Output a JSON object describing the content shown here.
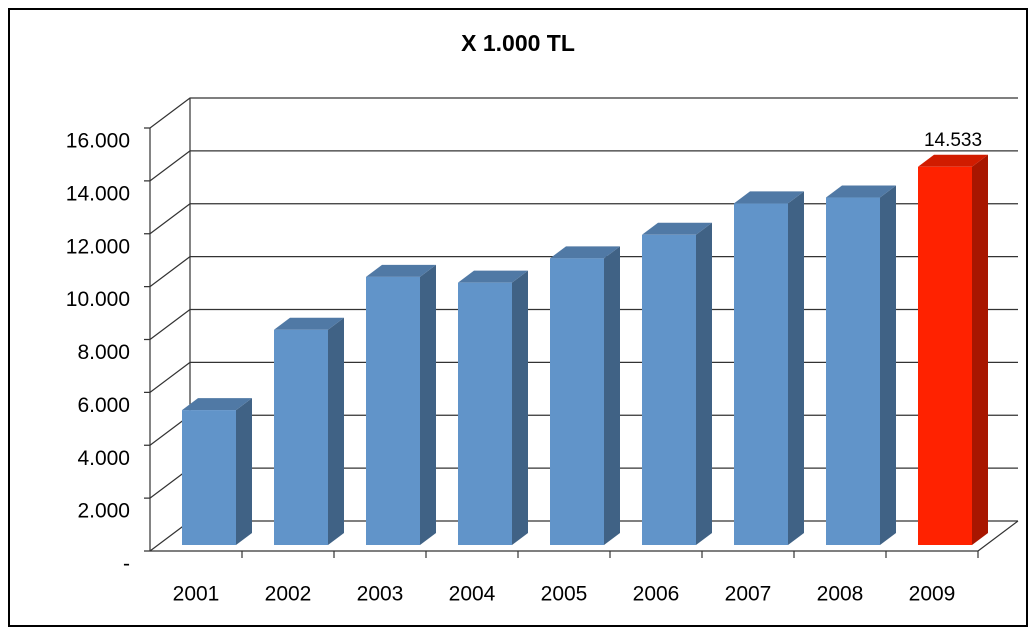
{
  "chart_data": {
    "type": "bar3d",
    "title": "X 1.000 TL",
    "categories": [
      "2001",
      "2002",
      "2003",
      "2004",
      "2005",
      "2006",
      "2007",
      "2008",
      "2009"
    ],
    "values": [
      5330,
      8370,
      10370,
      10150,
      11070,
      11960,
      13150,
      13370,
      14533
    ],
    "value_labels": [
      null,
      null,
      null,
      null,
      null,
      null,
      null,
      null,
      "14.533"
    ],
    "colors": [
      "#6194c9",
      "#6194c9",
      "#6194c9",
      "#6194c9",
      "#6194c9",
      "#6194c9",
      "#6194c9",
      "#6194c9",
      "#ff2200"
    ],
    "ylim": [
      0,
      16000
    ],
    "yticks": [
      {
        "value": 0,
        "label": "-"
      },
      {
        "value": 2000,
        "label": "2.000"
      },
      {
        "value": 4000,
        "label": "4.000"
      },
      {
        "value": 6000,
        "label": "6.000"
      },
      {
        "value": 8000,
        "label": "8.000"
      },
      {
        "value": 10000,
        "label": "10.000"
      },
      {
        "value": 12000,
        "label": "12.000"
      },
      {
        "value": 14000,
        "label": "14.000"
      },
      {
        "value": 16000,
        "label": "16.000"
      }
    ],
    "grid": true
  }
}
